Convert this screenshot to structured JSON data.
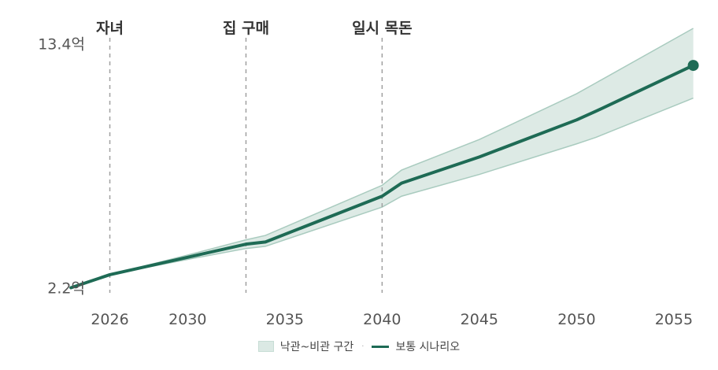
{
  "chart_data": {
    "type": "area",
    "x_domain": [
      2024.4,
      2056.3
    ],
    "y_domain": [
      1.75,
      14.1
    ],
    "ytick_values": [
      2.2,
      13.4
    ],
    "ytick_labels": [
      "2.2억",
      "13.4억"
    ],
    "xticks": [
      2026,
      2030,
      2035,
      2040,
      2045,
      2050,
      2055
    ],
    "events": [
      {
        "year": 2026,
        "label": "자녀"
      },
      {
        "year": 2033,
        "label": "집 구매"
      },
      {
        "year": 2040,
        "label": "일시 목돈"
      }
    ],
    "series": [
      {
        "name": "보통 시나리오",
        "type": "line",
        "color": "#1e6b55",
        "x": [
          2024,
          2026,
          2030,
          2033,
          2034,
          2040,
          2041,
          2045,
          2050,
          2051,
          2056
        ],
        "y": [
          2.2,
          2.8,
          3.6,
          4.2,
          4.3,
          6.4,
          7.0,
          8.2,
          9.9,
          10.3,
          12.4
        ]
      },
      {
        "name": "낙관~비관 구간",
        "type": "band",
        "color": "#dbe9e4",
        "x": [
          2024,
          2026,
          2030,
          2033,
          2034,
          2040,
          2041,
          2045,
          2050,
          2051,
          2056
        ],
        "upper": [
          2.2,
          2.8,
          3.7,
          4.4,
          4.6,
          6.9,
          7.6,
          9.0,
          11.1,
          11.6,
          14.1
        ],
        "lower": [
          2.2,
          2.8,
          3.5,
          4.0,
          4.1,
          5.9,
          6.4,
          7.4,
          8.8,
          9.1,
          10.9
        ]
      }
    ]
  },
  "legend": {
    "band_label": "낙관~비관 구간",
    "separator": "·",
    "line_label": "보통 시나리오"
  }
}
